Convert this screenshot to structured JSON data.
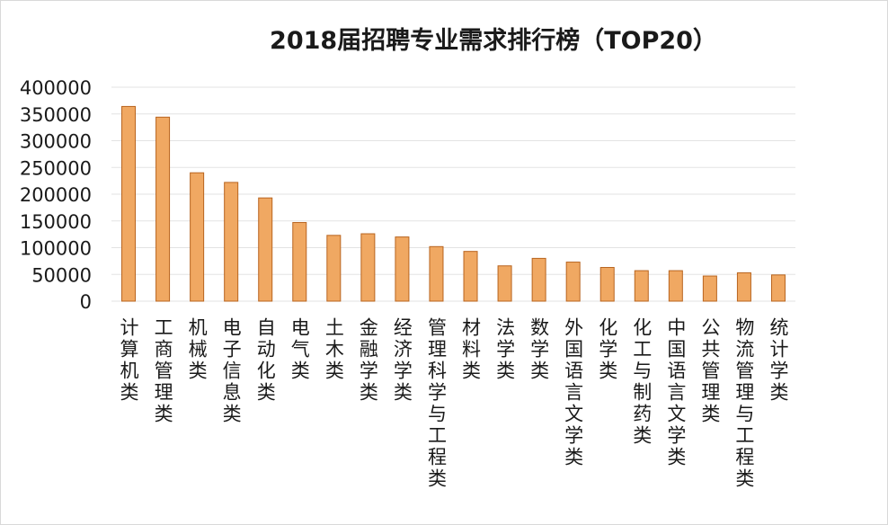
{
  "chart_data": {
    "type": "bar",
    "title": "2018届招聘专业需求排行榜（TOP20）",
    "xlabel": "",
    "ylabel": "",
    "ylim": [
      0,
      400000
    ],
    "yticks": [
      0,
      50000,
      100000,
      150000,
      200000,
      250000,
      300000,
      350000,
      400000
    ],
    "grid": true,
    "legend": "none",
    "bar_color": "#f0a862",
    "bar_edge_color": "#b8641f",
    "categories": [
      "计算机类",
      "工商管理类",
      "机械类",
      "电子信息类",
      "自动化类",
      "电气类",
      "土木类",
      "金融学类",
      "经济学类",
      "管理科学与工程类",
      "材料类",
      "法学类",
      "数学类",
      "外国语言文学类",
      "化学类",
      "化工与制药类",
      "中国语言文学类",
      "公共管理类",
      "物流管理与工程类",
      "统计学类"
    ],
    "values": [
      364000,
      344000,
      240000,
      222000,
      193000,
      147000,
      123000,
      126000,
      120000,
      102000,
      93000,
      66000,
      80000,
      73000,
      63000,
      57000,
      57000,
      47000,
      53000,
      49000
    ]
  }
}
